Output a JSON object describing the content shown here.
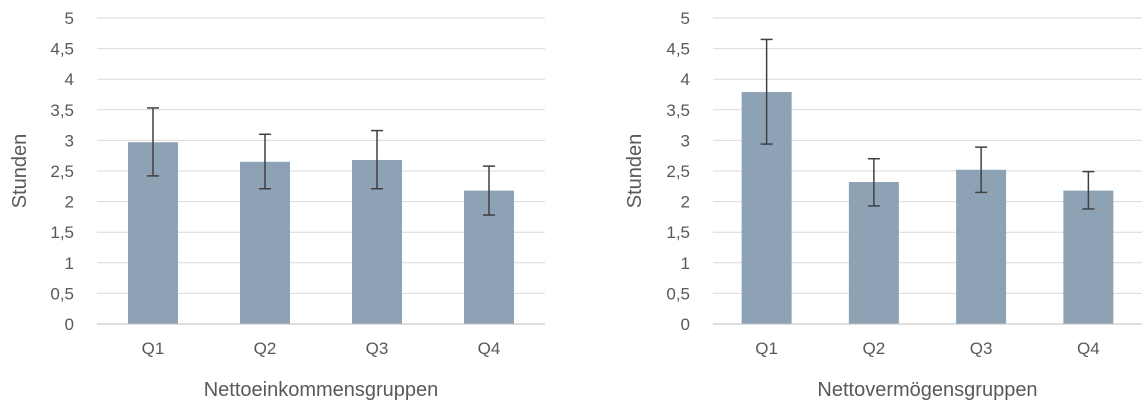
{
  "chart_data": [
    {
      "type": "bar",
      "categories": [
        "Q1",
        "Q2",
        "Q3",
        "Q4"
      ],
      "values": [
        2.97,
        2.65,
        2.68,
        2.18
      ],
      "error_low": [
        2.42,
        2.21,
        2.21,
        1.78
      ],
      "error_high": [
        3.53,
        3.1,
        3.16,
        2.58
      ],
      "xlabel": "Nettoeinkommensgruppen",
      "ylabel": "Stunden",
      "ylim": [
        0,
        5
      ],
      "yticks": [
        "0",
        "0,5",
        "1",
        "1,5",
        "2",
        "2,5",
        "3",
        "3,5",
        "4",
        "4,5",
        "5"
      ],
      "grid": true,
      "bar_color": "#8ea2b6"
    },
    {
      "type": "bar",
      "categories": [
        "Q1",
        "Q2",
        "Q3",
        "Q4"
      ],
      "values": [
        3.79,
        2.32,
        2.52,
        2.18
      ],
      "error_low": [
        2.94,
        1.93,
        2.15,
        1.88
      ],
      "error_high": [
        4.65,
        2.7,
        2.89,
        2.49
      ],
      "xlabel": "Nettovermögensgruppen",
      "ylabel": "Stunden",
      "ylim": [
        0,
        5
      ],
      "yticks": [
        "0",
        "0,5",
        "1",
        "1,5",
        "2",
        "2,5",
        "3",
        "3,5",
        "4",
        "4,5",
        "5"
      ],
      "grid": true,
      "bar_color": "#8ea2b6"
    }
  ]
}
